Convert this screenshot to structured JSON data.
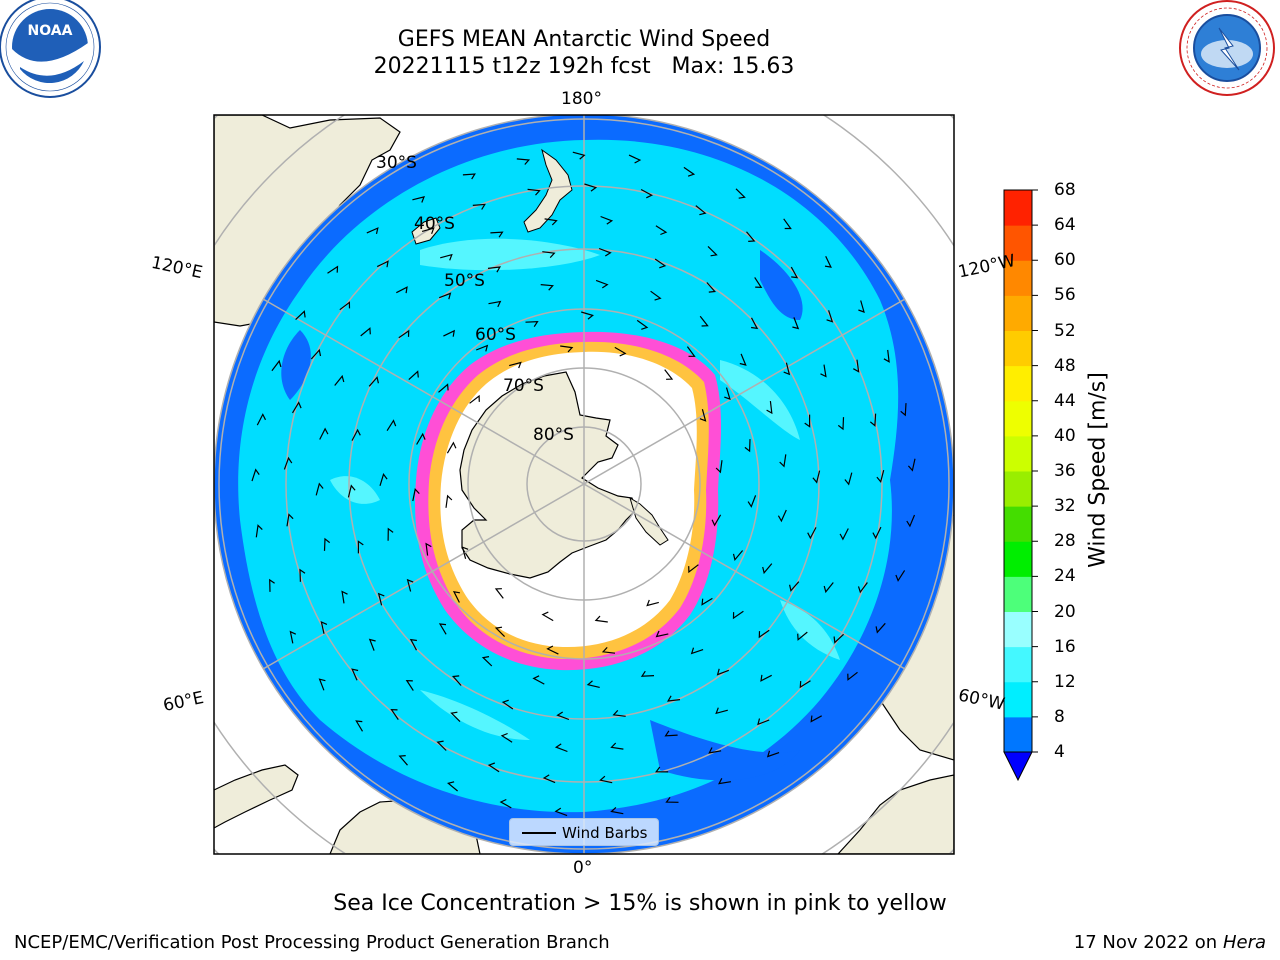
{
  "title_line1": "GEFS MEAN Antarctic Wind Speed",
  "title_line2": "20221115 t12z 192h fcst   Max: 15.63",
  "map_labels": {
    "lon_180": "180°",
    "lon_0": "0°",
    "lon_120e": "120°E",
    "lon_120w": "120°W",
    "lon_60e": "60°E",
    "lon_60w": "60°W",
    "lat_30s": "30°S",
    "lat_40s": "40°S",
    "lat_50s": "50°S",
    "lat_60s": "60°S",
    "lat_70s": "70°S",
    "lat_80s": "80°S"
  },
  "legend_label": "Wind Barbs",
  "subtitle": "Sea Ice Concentration > 15% is shown in pink to yellow",
  "footer_left": "NCEP/EMC/Verification Post Processing Product Generation Branch",
  "footer_date": "17 Nov 2022 on",
  "footer_host": "Hera",
  "colorbar": {
    "label": "Wind Speed [m/s]",
    "ticks": [
      "4",
      "8",
      "12",
      "16",
      "20",
      "24",
      "28",
      "32",
      "36",
      "40",
      "44",
      "48",
      "52",
      "56",
      "60",
      "64",
      "68"
    ],
    "colors": [
      "#0077ff",
      "#00eeff",
      "#44f8ff",
      "#99ffff",
      "#4dff7a",
      "#00ee00",
      "#44dd00",
      "#99ee00",
      "#ccff00",
      "#eeff00",
      "#ffee00",
      "#ffcc00",
      "#ffaa00",
      "#ff8800",
      "#ff5500",
      "#ff2200"
    ],
    "extend_color": "#0000ff"
  },
  "colors": {
    "land": "#efedda",
    "ocean_deep": "#0b6bff",
    "ocean_mid": "#00ddff",
    "ocean_light": "#55f6ff",
    "sea_ice": "#ff4fd6",
    "sea_ice_edge": "#ffc340"
  },
  "logos": {
    "left": "noaa-logo",
    "right": "national-weather-service-logo"
  }
}
